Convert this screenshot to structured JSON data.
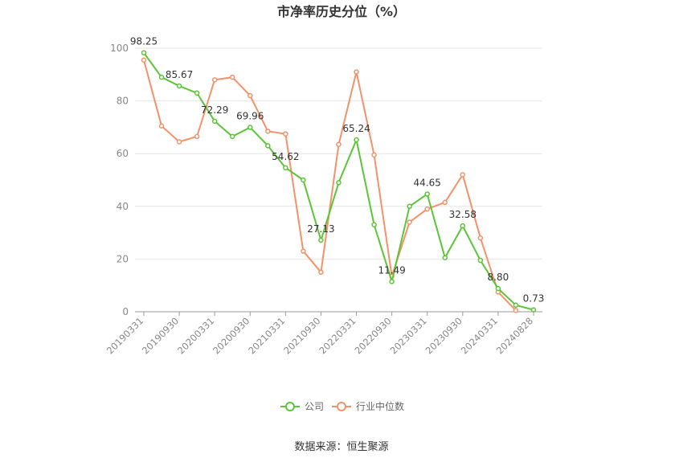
{
  "chart_data": {
    "type": "line",
    "title": "市净率历史分位（%）",
    "xlabel": "",
    "ylabel": "",
    "ylim": [
      0,
      100
    ],
    "yticks": [
      0,
      20,
      40,
      60,
      80,
      100
    ],
    "grid": true,
    "legend_position": "bottom",
    "x": [
      "20190331",
      "20190630",
      "20190930",
      "20191231",
      "20200331",
      "20200630",
      "20200930",
      "20201231",
      "20210331",
      "20210630",
      "20210930",
      "20211231",
      "20220331",
      "20220630",
      "20220930",
      "20221231",
      "20230331",
      "20230630",
      "20230930",
      "20231231",
      "20240331",
      "20240630",
      "20240828"
    ],
    "x_tick_labels": [
      "20190331",
      "20190930",
      "20200331",
      "20200930",
      "20210331",
      "20210930",
      "20220331",
      "20220930",
      "20230331",
      "20230930",
      "20240331",
      "20240828"
    ],
    "series": [
      {
        "name": "公司",
        "color": "#5ac535",
        "values": [
          98.25,
          89.0,
          85.67,
          83.0,
          72.29,
          66.5,
          69.96,
          63.0,
          54.62,
          50.0,
          27.13,
          49.0,
          65.24,
          33.0,
          11.49,
          40.0,
          44.65,
          20.5,
          32.58,
          19.5,
          8.8,
          2.5,
          0.73
        ],
        "labels": {
          "0": "98.25",
          "2": "85.67",
          "4": "72.29",
          "6": "69.96",
          "8": "54.62",
          "10": "27.13",
          "12": "65.24",
          "14": "11.49",
          "16": "44.65",
          "18": "32.58",
          "20": "8.80",
          "22": "0.73"
        }
      },
      {
        "name": "行业中位数",
        "color": "#f5916a",
        "values": [
          95.5,
          70.5,
          64.5,
          66.5,
          88.0,
          89.0,
          82.0,
          68.5,
          67.5,
          23.0,
          15.0,
          63.5,
          91.0,
          59.5,
          13.5,
          34.0,
          39.0,
          41.5,
          52.0,
          28.0,
          7.5,
          0.5,
          null
        ]
      }
    ]
  },
  "source_text": "数据来源：恒生聚源"
}
